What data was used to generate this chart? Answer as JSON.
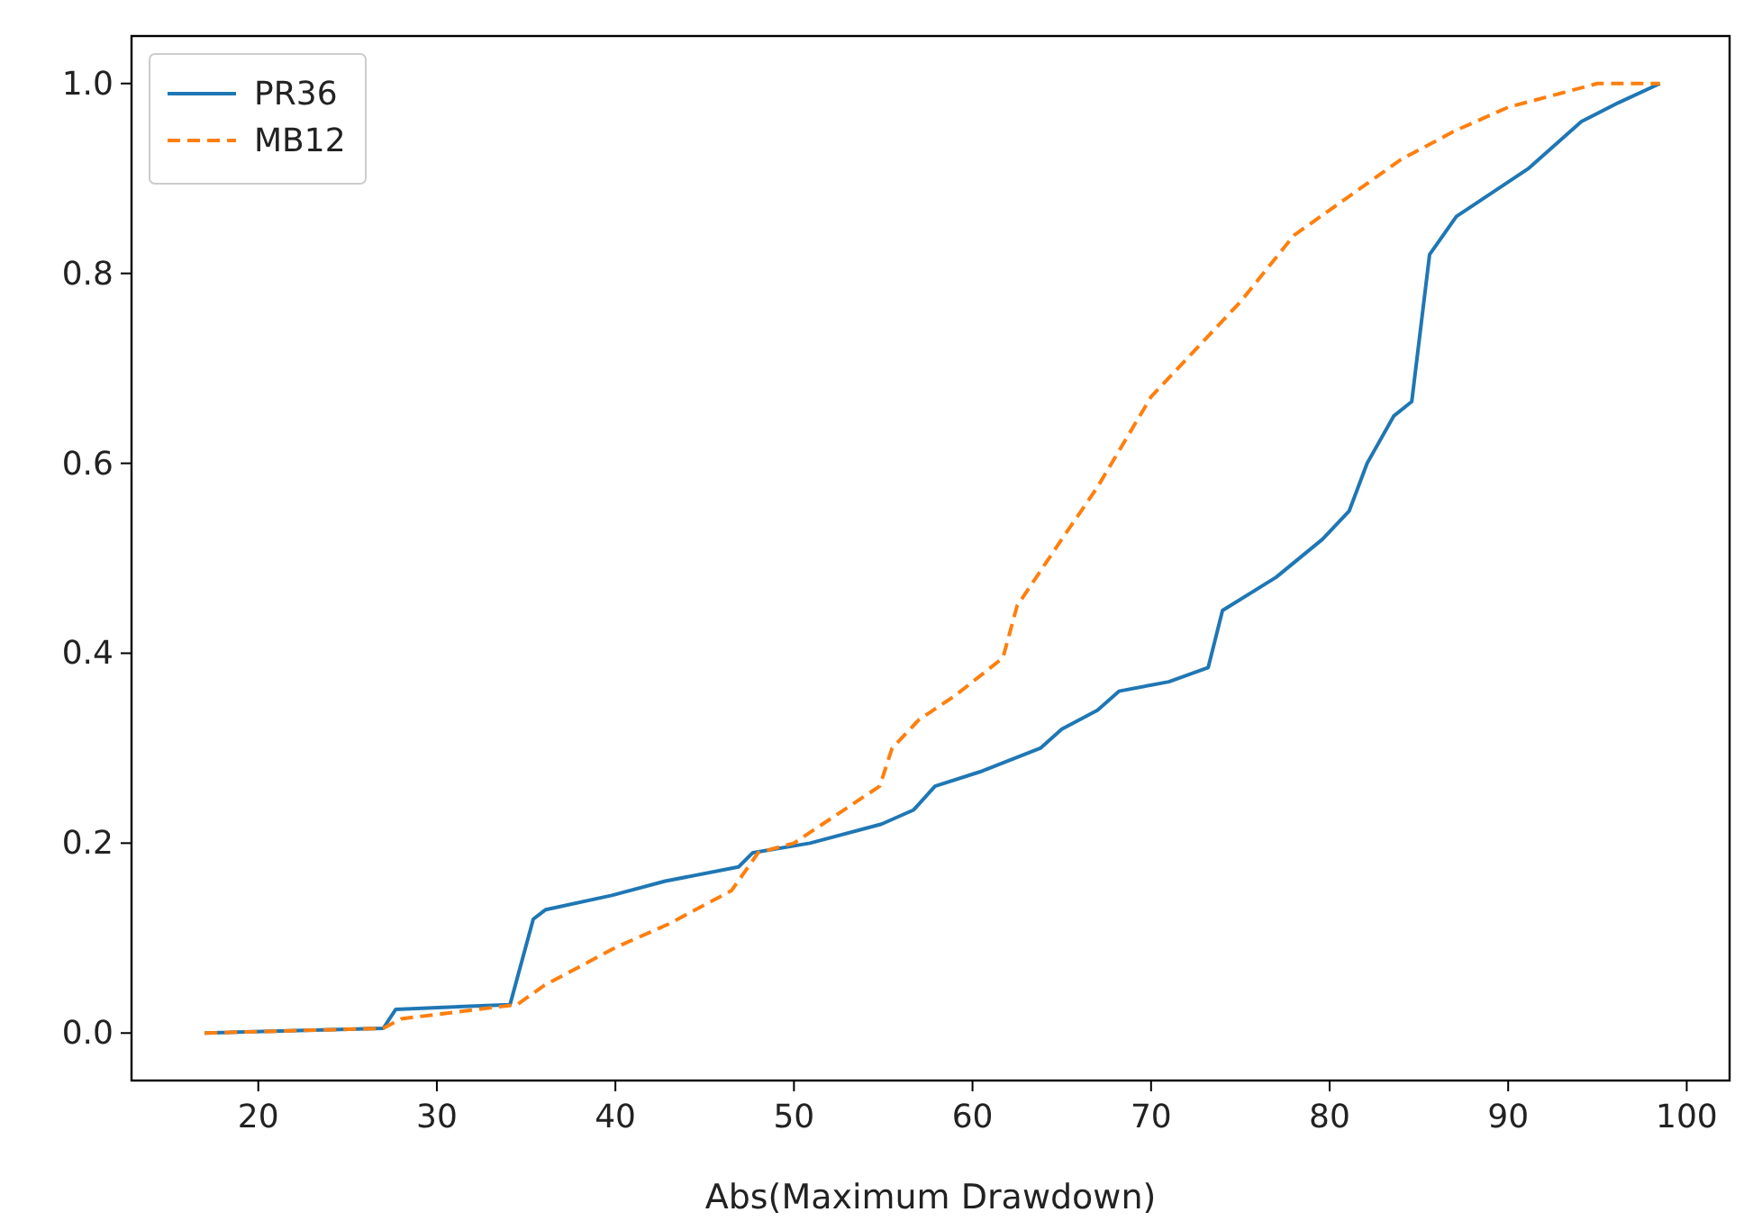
{
  "chart_data": {
    "type": "line",
    "xlabel": "Abs(Maximum Drawdown)",
    "xlim": [
      12.9,
      102.4
    ],
    "ylim": [
      -0.05,
      1.05
    ],
    "xticks": [
      20,
      30,
      40,
      50,
      60,
      70,
      80,
      90,
      100
    ],
    "yticks": [
      {
        "value": 0,
        "label": "0.0"
      },
      {
        "value": 0.2,
        "label": "0.2"
      },
      {
        "value": 0.4,
        "label": "0.4"
      },
      {
        "value": 0.6,
        "label": "0.6"
      },
      {
        "value": 0.8,
        "label": "0.8"
      },
      {
        "value": 1,
        "label": "1.0"
      }
    ],
    "grid": false,
    "legend": "top left",
    "marker": "none",
    "series": [
      {
        "name": "PR36",
        "color": "#1f77b4",
        "line_style": "solid",
        "x": [
          17,
          27,
          27.7,
          34.1,
          35.4,
          36.1,
          39.8,
          42.8,
          46.9,
          47.7,
          50.9,
          54.9,
          56.7,
          57.9,
          60.4,
          63.8,
          65,
          67,
          68.2,
          71,
          73.2,
          74,
          77,
          79.6,
          81.1,
          82.1,
          83.6,
          84.6,
          85.6,
          87.1,
          91.1,
          94.1,
          96.2,
          98.5
        ],
        "values": [
          0,
          0.005,
          0.025,
          0.03,
          0.12,
          0.13,
          0.145,
          0.16,
          0.175,
          0.19,
          0.2,
          0.22,
          0.235,
          0.26,
          0.275,
          0.3,
          0.32,
          0.34,
          0.36,
          0.37,
          0.385,
          0.445,
          0.48,
          0.52,
          0.55,
          0.6,
          0.65,
          0.665,
          0.82,
          0.86,
          0.91,
          0.96,
          0.98,
          1
        ]
      },
      {
        "name": "MB12",
        "color": "#ff7f0e",
        "line_style": "dashed",
        "x": [
          17,
          27,
          28,
          34.5,
          36,
          40,
          43,
          46.5,
          48,
          50,
          54.8,
          55.5,
          57,
          59,
          61.7,
          62.5,
          65,
          67,
          70,
          72,
          75,
          78,
          81,
          84,
          87,
          90,
          95,
          98.5
        ],
        "values": [
          0,
          0.005,
          0.015,
          0.03,
          0.05,
          0.09,
          0.115,
          0.15,
          0.19,
          0.2,
          0.26,
          0.3,
          0.33,
          0.355,
          0.395,
          0.45,
          0.52,
          0.575,
          0.67,
          0.71,
          0.77,
          0.84,
          0.88,
          0.92,
          0.95,
          0.975,
          1,
          1
        ]
      }
    ]
  }
}
